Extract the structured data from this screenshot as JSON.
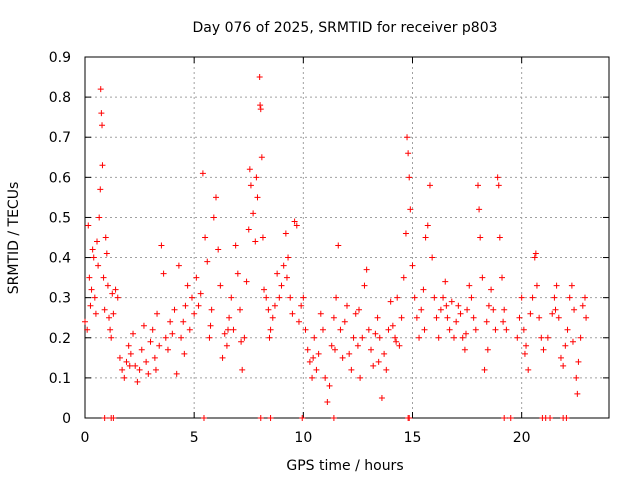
{
  "chart_data": {
    "type": "scatter",
    "title": "Day 076 of 2025, SRMTID for receiver p803",
    "xlabel": "GPS time / hours",
    "ylabel": "SRMTID / TECUs",
    "xlim": [
      0,
      24
    ],
    "ylim": [
      0,
      0.9
    ],
    "x_ticks": [
      "0",
      "5",
      "10",
      "15",
      "20"
    ],
    "y_ticks": [
      "0",
      "0.1",
      "0.2",
      "0.3",
      "0.4",
      "0.5",
      "0.6",
      "0.7",
      "0.8",
      "0.9"
    ],
    "grid": true,
    "marker": "+",
    "series": [
      {
        "name": "SRMTID",
        "color": "#ff0000",
        "points": [
          [
            0.1,
            0.22
          ],
          [
            0.15,
            0.48
          ],
          [
            0.2,
            0.35
          ],
          [
            0.25,
            0.28
          ],
          [
            0.3,
            0.32
          ],
          [
            0.35,
            0.42
          ],
          [
            0.4,
            0.4
          ],
          [
            0.45,
            0.3
          ],
          [
            0.5,
            0.26
          ],
          [
            0.55,
            0.44
          ],
          [
            0.6,
            0.38
          ],
          [
            0.65,
            0.5
          ],
          [
            0.7,
            0.57
          ],
          [
            0.72,
            0.82
          ],
          [
            0.75,
            0.76
          ],
          [
            0.78,
            0.73
          ],
          [
            0.8,
            0.63
          ],
          [
            0.85,
            0.35
          ],
          [
            0.9,
            0.27
          ],
          [
            0.95,
            0.45
          ],
          [
            1.0,
            0.41
          ],
          [
            1.05,
            0.33
          ],
          [
            1.1,
            0.25
          ],
          [
            1.15,
            0.22
          ],
          [
            1.2,
            0.2
          ],
          [
            1.3,
            0.26
          ],
          [
            1.4,
            0.32
          ],
          [
            1.5,
            0.3
          ],
          [
            1.6,
            0.15
          ],
          [
            1.7,
            0.12
          ],
          [
            1.8,
            0.1
          ],
          [
            1.9,
            0.14
          ],
          [
            2.0,
            0.18
          ],
          [
            2.1,
            0.16
          ],
          [
            2.2,
            0.21
          ],
          [
            2.3,
            0.13
          ],
          [
            2.4,
            0.09
          ],
          [
            2.5,
            0.12
          ],
          [
            2.6,
            0.17
          ],
          [
            2.7,
            0.23
          ],
          [
            2.8,
            0.14
          ],
          [
            2.9,
            0.11
          ],
          [
            3.0,
            0.19
          ],
          [
            3.1,
            0.22
          ],
          [
            3.2,
            0.15
          ],
          [
            3.3,
            0.26
          ],
          [
            3.4,
            0.18
          ],
          [
            3.5,
            0.43
          ],
          [
            3.6,
            0.36
          ],
          [
            3.7,
            0.2
          ],
          [
            3.8,
            0.17
          ],
          [
            3.9,
            0.24
          ],
          [
            4.0,
            0.21
          ],
          [
            4.1,
            0.27
          ],
          [
            4.2,
            0.11
          ],
          [
            4.3,
            0.38
          ],
          [
            4.4,
            0.2
          ],
          [
            4.5,
            0.24
          ],
          [
            4.6,
            0.28
          ],
          [
            4.7,
            0.33
          ],
          [
            4.8,
            0.22
          ],
          [
            4.9,
            0.3
          ],
          [
            5.0,
            0.26
          ],
          [
            5.1,
            0.35
          ],
          [
            5.2,
            0.28
          ],
          [
            5.3,
            0.31
          ],
          [
            5.4,
            0.61
          ],
          [
            5.5,
            0.45
          ],
          [
            5.6,
            0.39
          ],
          [
            5.7,
            0.2
          ],
          [
            5.8,
            0.27
          ],
          [
            5.9,
            0.5
          ],
          [
            6.0,
            0.55
          ],
          [
            6.1,
            0.42
          ],
          [
            6.2,
            0.33
          ],
          [
            6.3,
            0.15
          ],
          [
            6.4,
            0.21
          ],
          [
            6.5,
            0.18
          ],
          [
            6.6,
            0.25
          ],
          [
            6.7,
            0.3
          ],
          [
            6.8,
            0.22
          ],
          [
            6.9,
            0.43
          ],
          [
            7.0,
            0.36
          ],
          [
            7.1,
            0.27
          ],
          [
            7.2,
            0.12
          ],
          [
            7.3,
            0.2
          ],
          [
            7.4,
            0.34
          ],
          [
            7.5,
            0.47
          ],
          [
            7.55,
            0.62
          ],
          [
            7.6,
            0.58
          ],
          [
            7.7,
            0.51
          ],
          [
            7.8,
            0.44
          ],
          [
            7.85,
            0.6
          ],
          [
            7.9,
            0.55
          ],
          [
            8.0,
            0.85
          ],
          [
            8.02,
            0.78
          ],
          [
            8.05,
            0.77
          ],
          [
            8.1,
            0.65
          ],
          [
            8.15,
            0.45
          ],
          [
            8.2,
            0.32
          ],
          [
            8.3,
            0.3
          ],
          [
            8.4,
            0.27
          ],
          [
            8.5,
            0.22
          ],
          [
            8.6,
            0.25
          ],
          [
            8.7,
            0.28
          ],
          [
            8.8,
            0.36
          ],
          [
            8.9,
            0.3
          ],
          [
            9.0,
            0.33
          ],
          [
            9.1,
            0.38
          ],
          [
            9.2,
            0.46
          ],
          [
            9.3,
            0.4
          ],
          [
            9.4,
            0.3
          ],
          [
            9.5,
            0.26
          ],
          [
            9.6,
            0.49
          ],
          [
            9.7,
            0.48
          ],
          [
            9.8,
            0.24
          ],
          [
            9.9,
            0.28
          ],
          [
            10.0,
            0.3
          ],
          [
            10.1,
            0.22
          ],
          [
            10.2,
            0.17
          ],
          [
            10.3,
            0.14
          ],
          [
            10.4,
            0.1
          ],
          [
            10.5,
            0.2
          ],
          [
            10.6,
            0.12
          ],
          [
            10.7,
            0.16
          ],
          [
            10.8,
            0.26
          ],
          [
            10.9,
            0.22
          ],
          [
            11.0,
            0.1
          ],
          [
            11.1,
            0.04
          ],
          [
            11.2,
            0.08
          ],
          [
            11.3,
            0.18
          ],
          [
            11.4,
            0.25
          ],
          [
            11.5,
            0.3
          ],
          [
            11.6,
            0.43
          ],
          [
            11.7,
            0.22
          ],
          [
            11.8,
            0.15
          ],
          [
            11.9,
            0.24
          ],
          [
            12.0,
            0.28
          ],
          [
            12.1,
            0.16
          ],
          [
            12.2,
            0.12
          ],
          [
            12.3,
            0.2
          ],
          [
            12.4,
            0.26
          ],
          [
            12.5,
            0.18
          ],
          [
            12.6,
            0.1
          ],
          [
            12.7,
            0.2
          ],
          [
            12.8,
            0.33
          ],
          [
            12.9,
            0.37
          ],
          [
            13.0,
            0.22
          ],
          [
            13.1,
            0.17
          ],
          [
            13.2,
            0.13
          ],
          [
            13.3,
            0.21
          ],
          [
            13.4,
            0.25
          ],
          [
            13.5,
            0.2
          ],
          [
            13.6,
            0.05
          ],
          [
            13.7,
            0.16
          ],
          [
            13.8,
            0.12
          ],
          [
            13.9,
            0.22
          ],
          [
            14.0,
            0.29
          ],
          [
            14.1,
            0.23
          ],
          [
            14.2,
            0.2
          ],
          [
            14.3,
            0.3
          ],
          [
            14.4,
            0.18
          ],
          [
            14.5,
            0.25
          ],
          [
            14.6,
            0.35
          ],
          [
            14.7,
            0.46
          ],
          [
            14.75,
            0.7
          ],
          [
            14.8,
            0.66
          ],
          [
            14.85,
            0.6
          ],
          [
            14.9,
            0.52
          ],
          [
            15.0,
            0.38
          ],
          [
            15.1,
            0.3
          ],
          [
            15.2,
            0.25
          ],
          [
            15.3,
            0.2
          ],
          [
            15.4,
            0.27
          ],
          [
            15.5,
            0.32
          ],
          [
            15.6,
            0.45
          ],
          [
            15.7,
            0.48
          ],
          [
            15.8,
            0.58
          ],
          [
            15.9,
            0.4
          ],
          [
            16.0,
            0.3
          ],
          [
            16.1,
            0.25
          ],
          [
            16.2,
            0.2
          ],
          [
            16.3,
            0.27
          ],
          [
            16.4,
            0.3
          ],
          [
            16.5,
            0.34
          ],
          [
            16.6,
            0.25
          ],
          [
            16.7,
            0.22
          ],
          [
            16.8,
            0.29
          ],
          [
            16.9,
            0.2
          ],
          [
            17.0,
            0.24
          ],
          [
            17.1,
            0.28
          ],
          [
            17.2,
            0.26
          ],
          [
            17.3,
            0.2
          ],
          [
            17.4,
            0.17
          ],
          [
            17.5,
            0.27
          ],
          [
            17.6,
            0.33
          ],
          [
            17.7,
            0.3
          ],
          [
            17.8,
            0.25
          ],
          [
            17.9,
            0.22
          ],
          [
            18.0,
            0.58
          ],
          [
            18.05,
            0.52
          ],
          [
            18.1,
            0.45
          ],
          [
            18.2,
            0.35
          ],
          [
            18.3,
            0.12
          ],
          [
            18.4,
            0.24
          ],
          [
            18.5,
            0.28
          ],
          [
            18.6,
            0.32
          ],
          [
            18.7,
            0.27
          ],
          [
            18.8,
            0.22
          ],
          [
            18.9,
            0.6
          ],
          [
            18.95,
            0.58
          ],
          [
            19.0,
            0.45
          ],
          [
            19.1,
            0.35
          ],
          [
            19.2,
            0.27
          ],
          [
            19.3,
            0.22
          ],
          [
            19.8,
            0.2
          ],
          [
            19.9,
            0.25
          ],
          [
            20.0,
            0.3
          ],
          [
            20.1,
            0.22
          ],
          [
            20.2,
            0.18
          ],
          [
            20.3,
            0.12
          ],
          [
            20.4,
            0.26
          ],
          [
            20.5,
            0.3
          ],
          [
            20.6,
            0.4
          ],
          [
            20.65,
            0.41
          ],
          [
            20.7,
            0.33
          ],
          [
            20.8,
            0.25
          ],
          [
            20.9,
            0.2
          ],
          [
            21.0,
            0.17
          ],
          [
            21.2,
            0.2
          ],
          [
            21.4,
            0.26
          ],
          [
            21.5,
            0.3
          ],
          [
            21.6,
            0.33
          ],
          [
            21.7,
            0.25
          ],
          [
            21.8,
            0.15
          ],
          [
            21.9,
            0.13
          ],
          [
            22.0,
            0.18
          ],
          [
            22.1,
            0.22
          ],
          [
            22.2,
            0.3
          ],
          [
            22.3,
            0.33
          ],
          [
            22.4,
            0.27
          ],
          [
            22.5,
            0.1
          ],
          [
            22.55,
            0.06
          ],
          [
            22.6,
            0.14
          ],
          [
            22.7,
            0.2
          ],
          [
            22.8,
            0.28
          ],
          [
            22.9,
            0.3
          ],
          [
            22.95,
            0.25
          ],
          [
            0.0,
            0.24
          ],
          [
            1.25,
            0.31
          ],
          [
            2.05,
            0.13
          ],
          [
            3.25,
            0.12
          ],
          [
            4.55,
            0.16
          ],
          [
            5.75,
            0.23
          ],
          [
            6.55,
            0.22
          ],
          [
            7.15,
            0.19
          ],
          [
            8.45,
            0.2
          ],
          [
            9.25,
            0.35
          ],
          [
            10.45,
            0.15
          ],
          [
            11.45,
            0.17
          ],
          [
            12.55,
            0.27
          ],
          [
            13.45,
            0.14
          ],
          [
            14.25,
            0.19
          ],
          [
            15.55,
            0.22
          ],
          [
            16.55,
            0.28
          ],
          [
            17.45,
            0.21
          ],
          [
            18.45,
            0.17
          ],
          [
            19.15,
            0.24
          ],
          [
            20.15,
            0.16
          ],
          [
            21.55,
            0.27
          ],
          [
            22.35,
            0.19
          ],
          [
            0.9,
            0.0
          ],
          [
            1.2,
            0.0
          ],
          [
            1.3,
            0.0
          ],
          [
            5.45,
            0.0
          ],
          [
            8.05,
            0.0
          ],
          [
            8.5,
            0.0
          ],
          [
            9.95,
            0.0
          ],
          [
            11.4,
            0.0
          ],
          [
            14.8,
            0.0
          ],
          [
            14.85,
            0.0
          ],
          [
            19.2,
            0.0
          ],
          [
            19.5,
            0.0
          ],
          [
            20.95,
            0.0
          ],
          [
            21.1,
            0.0
          ],
          [
            21.3,
            0.0
          ],
          [
            21.9,
            0.0
          ],
          [
            22.05,
            0.0
          ]
        ]
      }
    ]
  }
}
